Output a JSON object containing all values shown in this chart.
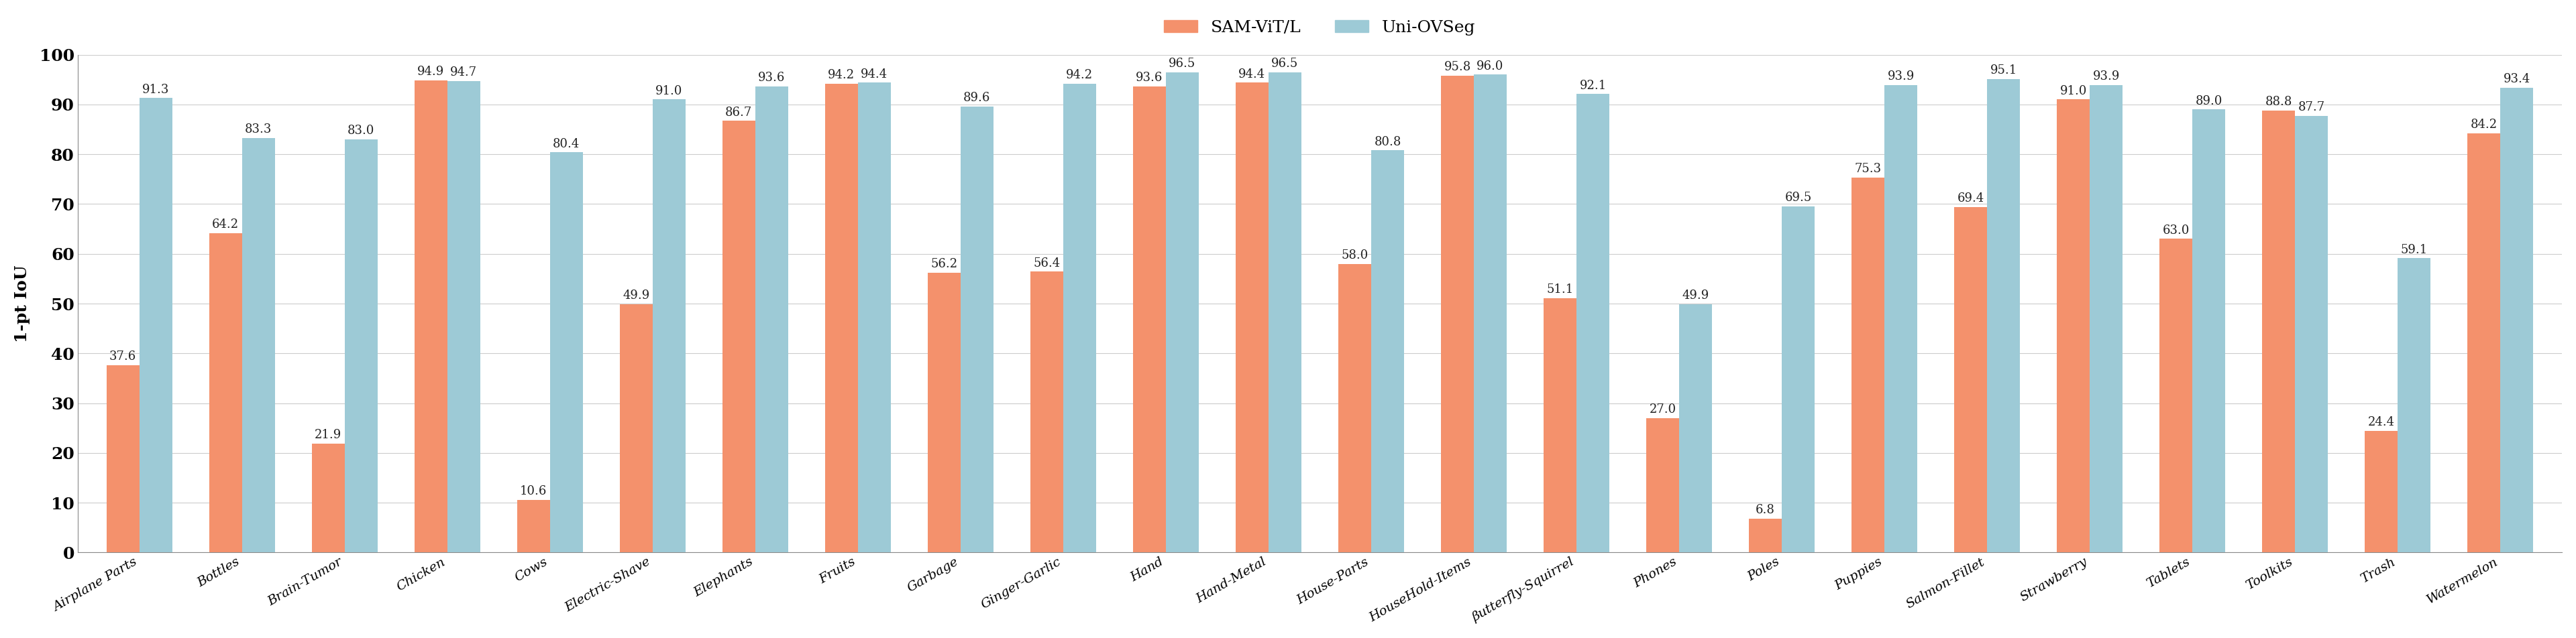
{
  "categories": [
    "Airplane Parts",
    "Bottles",
    "Brain-Tumor",
    "Chicken",
    "Cows",
    "Electric-Shave",
    "Elephants",
    "Fruits",
    "Garbage",
    "Ginger-Garlic",
    "Hand",
    "Hand-Metal",
    "House-Parts",
    "HouseHold-Items",
    "βutterfly-Squirrel",
    "Phones",
    "Poles",
    "Puppies",
    "Salmon-Fillet",
    "Strawberry",
    "Tablets",
    "Toolkits",
    "Trash",
    "Watermelon"
  ],
  "sam_values": [
    37.6,
    64.2,
    21.9,
    94.9,
    10.6,
    49.9,
    86.7,
    94.2,
    56.2,
    56.4,
    93.6,
    94.4,
    58.0,
    95.8,
    51.1,
    27.0,
    6.8,
    75.3,
    69.4,
    91.0,
    63.0,
    88.8,
    24.4,
    84.2
  ],
  "uni_values": [
    91.3,
    83.3,
    83.0,
    94.7,
    80.4,
    91.0,
    93.6,
    94.4,
    89.6,
    94.2,
    96.5,
    96.5,
    80.8,
    96.0,
    92.1,
    49.9,
    69.5,
    93.9,
    95.1,
    93.9,
    89.0,
    87.7,
    59.1,
    93.4
  ],
  "sam_color": "#F4916C",
  "uni_color": "#9DCAD6",
  "ylabel": "1-pt IoU",
  "ylim": [
    0,
    100
  ],
  "yticks": [
    0,
    10,
    20,
    30,
    40,
    50,
    60,
    70,
    80,
    90,
    100
  ],
  "sam_label": "SAM-ViT/L",
  "uni_label": "Uni-OVSeg",
  "bar_width": 0.32,
  "fontsize_labels": 18,
  "fontsize_values": 13,
  "fontsize_legend": 18,
  "fontsize_yticks": 18,
  "fontsize_xticks": 14,
  "background_color": "#ffffff",
  "grid_color": "#cccccc"
}
